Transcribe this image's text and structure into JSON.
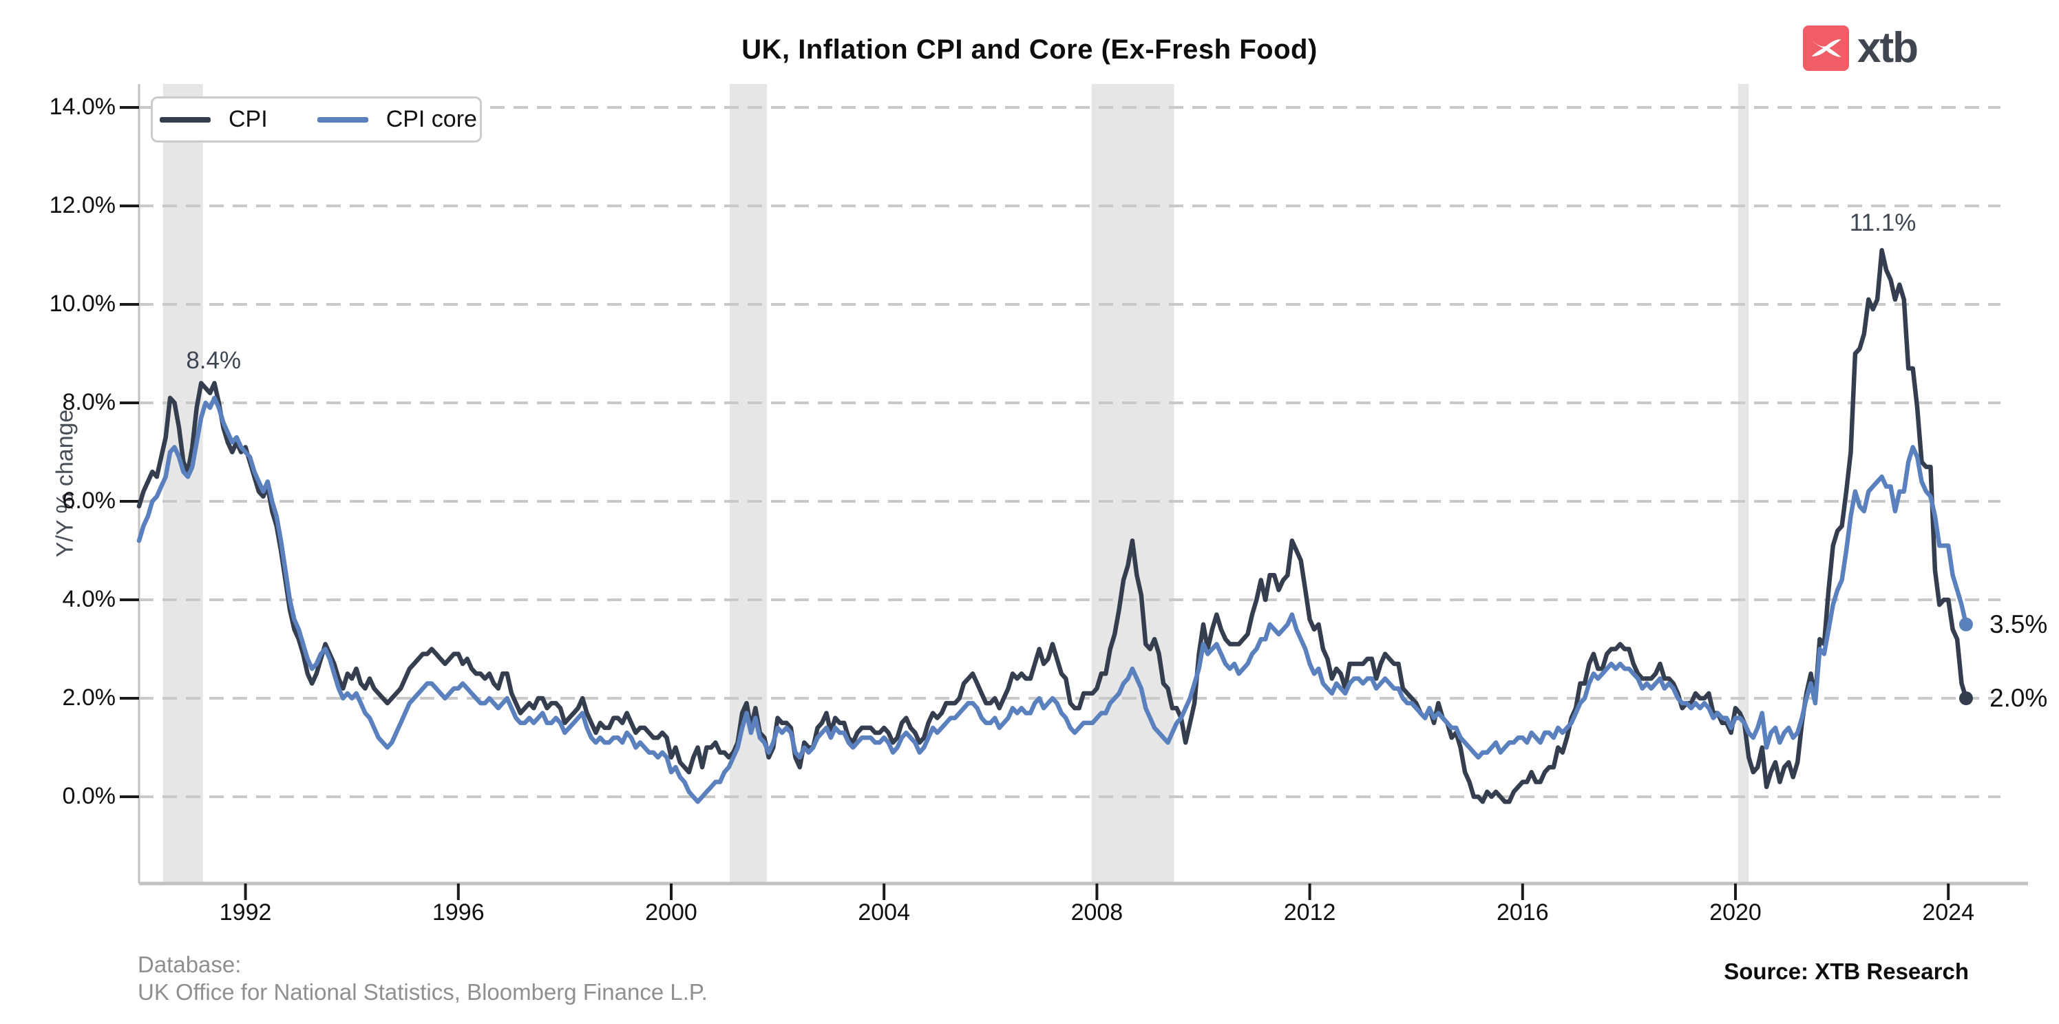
{
  "logo": {
    "text": "xtb",
    "mark_color": "#f15d66",
    "text_color": "#3f4650"
  },
  "footer": {
    "database_label": "Database:",
    "database_sources": "UK Office for National Statistics, Bloomberg Finance L.P.",
    "source": "Source: XTB Research"
  },
  "chart_data": {
    "type": "line",
    "title": "UK, Inflation CPI and Core (Ex-Fresh Food)",
    "xlabel": "",
    "ylabel": "Y/Y % change",
    "ylim": [
      -1.8,
      14.5
    ],
    "grid": "horizontal-dashed",
    "legend_position": "top-left",
    "frequency": "monthly",
    "start_year": 1990,
    "end_point": "2024-05",
    "ytick_values": [
      0,
      2,
      4,
      6,
      8,
      10,
      12,
      14
    ],
    "ytick_labels": [
      "0.0%",
      "2.0%",
      "4.0%",
      "6.0%",
      "8.0%",
      "10.0%",
      "12.0%",
      "14.0%"
    ],
    "xtick_years": [
      1992,
      1996,
      2000,
      2004,
      2008,
      2012,
      2016,
      2020,
      2024
    ],
    "xtick_labels": [
      "1992",
      "1996",
      "2000",
      "2004",
      "2008",
      "2012",
      "2016",
      "2020",
      "2024"
    ],
    "recession_band_color": "#e6e6e6",
    "recession_bands": [
      [
        1990.45,
        1991.2
      ],
      [
        2001.1,
        2001.8
      ],
      [
        2007.9,
        2009.45
      ],
      [
        2020.05,
        2020.25
      ]
    ],
    "annotations": [
      {
        "text": "8.4%",
        "year": 1991.4,
        "value": 8.85
      },
      {
        "text": "11.1%",
        "year": 2022.77,
        "value": 11.65
      }
    ],
    "end_labels": [
      {
        "text": "3.5%",
        "value": 3.5,
        "series": "CPI core"
      },
      {
        "text": "2.0%",
        "value": 2.0,
        "series": "CPI"
      }
    ],
    "series": [
      {
        "name": "CPI",
        "color": "#343e4e",
        "values_by_year": {
          "1990": [
            5.9,
            6.2,
            6.4,
            6.6,
            6.5,
            6.9,
            7.3,
            8.1,
            8.0,
            7.5,
            6.8,
            6.6
          ],
          "1991": [
            7.1,
            7.9,
            8.4,
            8.3,
            8.2,
            8.4,
            8.0,
            7.5,
            7.2,
            7.0,
            7.2,
            7.0
          ],
          "1992": [
            7.1,
            6.8,
            6.5,
            6.2,
            6.1,
            6.3,
            5.8,
            5.5,
            5.0,
            4.4,
            3.8,
            3.4
          ],
          "1993": [
            3.2,
            2.9,
            2.5,
            2.3,
            2.5,
            2.8,
            3.1,
            2.9,
            2.7,
            2.4,
            2.2,
            2.5
          ],
          "1994": [
            2.4,
            2.6,
            2.3,
            2.2,
            2.4,
            2.2,
            2.1,
            2.0,
            1.9,
            2.0,
            2.1,
            2.2
          ],
          "1995": [
            2.4,
            2.6,
            2.7,
            2.8,
            2.9,
            2.9,
            3.0,
            2.9,
            2.8,
            2.7,
            2.8,
            2.9
          ],
          "1996": [
            2.9,
            2.7,
            2.8,
            2.6,
            2.5,
            2.5,
            2.4,
            2.5,
            2.3,
            2.2,
            2.5,
            2.5
          ],
          "1997": [
            2.1,
            1.9,
            1.7,
            1.8,
            1.9,
            1.8,
            2.0,
            2.0,
            1.8,
            1.9,
            1.9,
            1.8
          ],
          "1998": [
            1.5,
            1.6,
            1.7,
            1.8,
            2.0,
            1.7,
            1.5,
            1.3,
            1.5,
            1.4,
            1.4,
            1.6
          ],
          "1999": [
            1.6,
            1.5,
            1.7,
            1.5,
            1.3,
            1.4,
            1.4,
            1.3,
            1.2,
            1.2,
            1.3,
            1.2
          ],
          "2000": [
            0.8,
            1.0,
            0.7,
            0.6,
            0.5,
            0.8,
            1.0,
            0.6,
            1.0,
            1.0,
            1.1,
            0.9
          ],
          "2001": [
            0.9,
            0.8,
            0.9,
            1.1,
            1.7,
            1.9,
            1.4,
            1.8,
            1.3,
            1.2,
            0.8,
            1.0
          ],
          "2002": [
            1.6,
            1.5,
            1.5,
            1.4,
            0.8,
            0.6,
            1.1,
            1.0,
            1.0,
            1.4,
            1.5,
            1.7
          ],
          "2003": [
            1.3,
            1.6,
            1.5,
            1.5,
            1.2,
            1.1,
            1.3,
            1.4,
            1.4,
            1.4,
            1.3,
            1.3
          ],
          "2004": [
            1.4,
            1.3,
            1.1,
            1.2,
            1.5,
            1.6,
            1.4,
            1.3,
            1.1,
            1.2,
            1.5,
            1.7
          ],
          "2005": [
            1.6,
            1.7,
            1.9,
            1.9,
            1.9,
            2.0,
            2.3,
            2.4,
            2.5,
            2.3,
            2.1,
            1.9
          ],
          "2006": [
            1.9,
            2.0,
            1.8,
            2.0,
            2.2,
            2.5,
            2.4,
            2.5,
            2.4,
            2.4,
            2.7,
            3.0
          ],
          "2007": [
            2.7,
            2.8,
            3.1,
            2.8,
            2.5,
            2.4,
            1.9,
            1.8,
            1.8,
            2.1,
            2.1,
            2.1
          ],
          "2008": [
            2.2,
            2.5,
            2.5,
            3.0,
            3.3,
            3.8,
            4.4,
            4.7,
            5.2,
            4.5,
            4.1,
            3.1
          ],
          "2009": [
            3.0,
            3.2,
            2.9,
            2.3,
            2.2,
            1.8,
            1.8,
            1.6,
            1.1,
            1.5,
            1.9,
            2.9
          ],
          "2010": [
            3.5,
            3.0,
            3.4,
            3.7,
            3.4,
            3.2,
            3.1,
            3.1,
            3.1,
            3.2,
            3.3,
            3.7
          ],
          "2011": [
            4.0,
            4.4,
            4.0,
            4.5,
            4.5,
            4.2,
            4.4,
            4.5,
            5.2,
            5.0,
            4.8,
            4.2
          ],
          "2012": [
            3.6,
            3.4,
            3.5,
            3.0,
            2.8,
            2.4,
            2.6,
            2.5,
            2.2,
            2.7,
            2.7,
            2.7
          ],
          "2013": [
            2.7,
            2.8,
            2.8,
            2.4,
            2.7,
            2.9,
            2.8,
            2.7,
            2.7,
            2.2,
            2.1,
            2.0
          ],
          "2014": [
            1.9,
            1.7,
            1.6,
            1.8,
            1.5,
            1.9,
            1.6,
            1.5,
            1.2,
            1.3,
            1.0,
            0.5
          ],
          "2015": [
            0.3,
            0.0,
            0.0,
            -0.1,
            0.1,
            0.0,
            0.1,
            0.0,
            -0.1,
            -0.1,
            0.1,
            0.2
          ],
          "2016": [
            0.3,
            0.3,
            0.5,
            0.3,
            0.3,
            0.5,
            0.6,
            0.6,
            1.0,
            0.9,
            1.2,
            1.6
          ],
          "2017": [
            1.8,
            2.3,
            2.3,
            2.7,
            2.9,
            2.6,
            2.6,
            2.9,
            3.0,
            3.0,
            3.1,
            3.0
          ],
          "2018": [
            3.0,
            2.7,
            2.5,
            2.4,
            2.4,
            2.4,
            2.5,
            2.7,
            2.4,
            2.4,
            2.3,
            2.1
          ],
          "2019": [
            1.8,
            1.9,
            1.9,
            2.1,
            2.0,
            2.0,
            2.1,
            1.7,
            1.7,
            1.5,
            1.5,
            1.3
          ],
          "2020": [
            1.8,
            1.7,
            1.5,
            0.8,
            0.5,
            0.6,
            1.0,
            0.2,
            0.5,
            0.7,
            0.3,
            0.6
          ],
          "2021": [
            0.7,
            0.4,
            0.7,
            1.5,
            2.1,
            2.5,
            2.0,
            3.2,
            3.1,
            4.2,
            5.1,
            5.4
          ],
          "2022": [
            5.5,
            6.2,
            7.0,
            9.0,
            9.1,
            9.4,
            10.1,
            9.9,
            10.1,
            11.1,
            10.7,
            10.5
          ],
          "2023": [
            10.1,
            10.4,
            10.1,
            8.7,
            8.7,
            7.9,
            6.8,
            6.7,
            6.7,
            4.6,
            3.9,
            4.0
          ],
          "2024": [
            4.0,
            3.4,
            3.2,
            2.3,
            2.0
          ]
        }
      },
      {
        "name": "CPI core",
        "color": "#5b80be",
        "values_by_year": {
          "1990": [
            5.2,
            5.5,
            5.7,
            6.0,
            6.1,
            6.3,
            6.5,
            7.0,
            7.1,
            6.9,
            6.6,
            6.5
          ],
          "1991": [
            6.7,
            7.2,
            7.7,
            8.0,
            7.9,
            8.1,
            7.9,
            7.6,
            7.4,
            7.2,
            7.3,
            7.1
          ],
          "1992": [
            7.0,
            6.9,
            6.6,
            6.4,
            6.2,
            6.4,
            6.0,
            5.7,
            5.2,
            4.6,
            4.0,
            3.6
          ],
          "1993": [
            3.4,
            3.1,
            2.8,
            2.6,
            2.7,
            2.9,
            3.0,
            2.8,
            2.5,
            2.2,
            2.0,
            2.1
          ],
          "1994": [
            2.0,
            2.1,
            1.9,
            1.7,
            1.6,
            1.4,
            1.2,
            1.1,
            1.0,
            1.1,
            1.3,
            1.5
          ],
          "1995": [
            1.7,
            1.9,
            2.0,
            2.1,
            2.2,
            2.3,
            2.3,
            2.2,
            2.1,
            2.0,
            2.1,
            2.2
          ],
          "1996": [
            2.2,
            2.3,
            2.2,
            2.1,
            2.0,
            1.9,
            1.9,
            2.0,
            1.9,
            1.8,
            1.9,
            2.0
          ],
          "1997": [
            1.8,
            1.6,
            1.5,
            1.5,
            1.6,
            1.5,
            1.6,
            1.7,
            1.5,
            1.5,
            1.6,
            1.5
          ],
          "1998": [
            1.3,
            1.4,
            1.5,
            1.6,
            1.7,
            1.4,
            1.2,
            1.1,
            1.2,
            1.1,
            1.1,
            1.2
          ],
          "1999": [
            1.2,
            1.1,
            1.3,
            1.2,
            1.0,
            1.1,
            1.0,
            0.9,
            0.9,
            0.8,
            0.9,
            0.8
          ],
          "2000": [
            0.5,
            0.6,
            0.4,
            0.3,
            0.1,
            0.0,
            -0.1,
            0.0,
            0.1,
            0.2,
            0.3,
            0.3
          ],
          "2001": [
            0.5,
            0.6,
            0.8,
            1.0,
            1.4,
            1.7,
            1.3,
            1.6,
            1.2,
            1.1,
            0.9,
            1.1
          ],
          "2002": [
            1.4,
            1.3,
            1.4,
            1.3,
            0.9,
            0.8,
            1.0,
            0.9,
            1.0,
            1.2,
            1.3,
            1.4
          ],
          "2003": [
            1.2,
            1.4,
            1.3,
            1.3,
            1.1,
            1.0,
            1.1,
            1.2,
            1.2,
            1.2,
            1.1,
            1.1
          ],
          "2004": [
            1.2,
            1.1,
            0.9,
            1.0,
            1.2,
            1.3,
            1.2,
            1.1,
            0.9,
            1.0,
            1.2,
            1.4
          ],
          "2005": [
            1.3,
            1.4,
            1.5,
            1.6,
            1.6,
            1.7,
            1.8,
            1.9,
            1.9,
            1.8,
            1.6,
            1.5
          ],
          "2006": [
            1.5,
            1.6,
            1.4,
            1.5,
            1.6,
            1.8,
            1.7,
            1.8,
            1.7,
            1.7,
            1.9,
            2.0
          ],
          "2007": [
            1.8,
            1.9,
            2.0,
            1.9,
            1.7,
            1.6,
            1.4,
            1.3,
            1.4,
            1.5,
            1.5,
            1.5
          ],
          "2008": [
            1.6,
            1.7,
            1.7,
            1.9,
            2.0,
            2.1,
            2.3,
            2.4,
            2.6,
            2.4,
            2.2,
            1.8
          ],
          "2009": [
            1.6,
            1.4,
            1.3,
            1.2,
            1.1,
            1.3,
            1.5,
            1.6,
            1.8,
            2.0,
            2.3,
            2.6
          ],
          "2010": [
            3.1,
            2.9,
            3.0,
            3.1,
            2.9,
            2.7,
            2.6,
            2.7,
            2.5,
            2.6,
            2.7,
            2.9
          ],
          "2011": [
            3.0,
            3.2,
            3.2,
            3.5,
            3.4,
            3.3,
            3.4,
            3.5,
            3.7,
            3.4,
            3.2,
            3.0
          ],
          "2012": [
            2.7,
            2.5,
            2.6,
            2.3,
            2.2,
            2.1,
            2.3,
            2.2,
            2.1,
            2.3,
            2.4,
            2.4
          ],
          "2013": [
            2.3,
            2.4,
            2.4,
            2.2,
            2.3,
            2.4,
            2.3,
            2.2,
            2.2,
            2.0,
            1.9,
            1.9
          ],
          "2014": [
            1.8,
            1.7,
            1.6,
            1.8,
            1.6,
            1.7,
            1.6,
            1.5,
            1.4,
            1.4,
            1.2,
            1.1
          ],
          "2015": [
            1.0,
            0.9,
            0.8,
            0.9,
            0.9,
            1.0,
            1.1,
            0.9,
            1.0,
            1.1,
            1.1,
            1.2
          ],
          "2016": [
            1.2,
            1.1,
            1.3,
            1.2,
            1.1,
            1.3,
            1.3,
            1.2,
            1.4,
            1.3,
            1.4,
            1.5
          ],
          "2017": [
            1.7,
            1.9,
            2.0,
            2.3,
            2.5,
            2.4,
            2.5,
            2.6,
            2.7,
            2.6,
            2.7,
            2.6
          ],
          "2018": [
            2.6,
            2.5,
            2.4,
            2.2,
            2.3,
            2.2,
            2.3,
            2.4,
            2.2,
            2.3,
            2.2,
            2.0
          ],
          "2019": [
            1.9,
            1.9,
            1.8,
            1.9,
            1.8,
            1.9,
            1.8,
            1.6,
            1.7,
            1.6,
            1.6,
            1.4
          ],
          "2020": [
            1.6,
            1.6,
            1.5,
            1.3,
            1.2,
            1.4,
            1.7,
            1.0,
            1.3,
            1.4,
            1.1,
            1.3
          ],
          "2021": [
            1.4,
            1.2,
            1.3,
            1.6,
            2.0,
            2.3,
            1.9,
            3.0,
            2.9,
            3.4,
            3.9,
            4.2
          ],
          "2022": [
            4.4,
            5.0,
            5.7,
            6.2,
            5.9,
            5.8,
            6.2,
            6.3,
            6.4,
            6.5,
            6.3,
            6.3
          ],
          "2023": [
            5.8,
            6.2,
            6.2,
            6.8,
            7.1,
            6.9,
            6.4,
            6.2,
            6.1,
            5.7,
            5.1,
            5.1
          ],
          "2024": [
            5.1,
            4.5,
            4.2,
            3.9,
            3.5
          ]
        }
      }
    ]
  }
}
